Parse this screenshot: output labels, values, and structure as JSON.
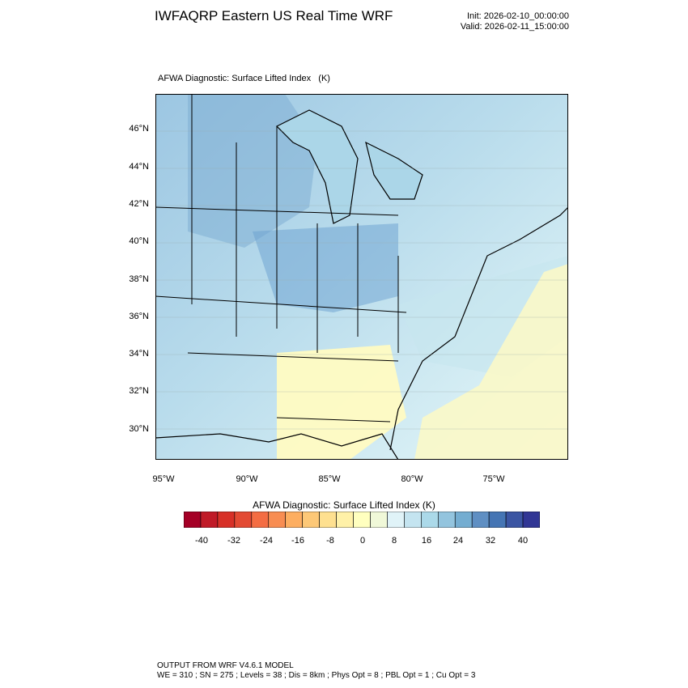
{
  "header": {
    "title": "IWFAQRP Eastern US Real Time WRF",
    "init": "Init: 2026-02-10_00:00:00",
    "valid": "Valid: 2026-02-11_15:00:00"
  },
  "plot": {
    "title": "AFWA Diagnostic: Surface Lifted Index   (K)",
    "lat_labels": [
      "46°N",
      "44°N",
      "42°N",
      "40°N",
      "38°N",
      "36°N",
      "34°N",
      "32°N",
      "30°N"
    ],
    "lon_labels": [
      "95°W",
      "90°W",
      "85°W",
      "80°W",
      "75°W"
    ]
  },
  "colorbar": {
    "title": "AFWA Diagnostic: Surface Lifted Index  (K)",
    "labels": [
      "-40",
      "-32",
      "-24",
      "-16",
      "-8",
      "0",
      "8",
      "16",
      "24",
      "32",
      "40"
    ],
    "colors": [
      "#a50026",
      "#c01a27",
      "#d73027",
      "#e34a33",
      "#f46d43",
      "#f88d52",
      "#fdae61",
      "#fdc877",
      "#fee090",
      "#fff1a8",
      "#ffffbf",
      "#f0f8d8",
      "#e0f3f8",
      "#c4e4f0",
      "#abd9e9",
      "#93c4de",
      "#74add1",
      "#5f8fc3",
      "#4575b4",
      "#3b55a3",
      "#313695"
    ]
  },
  "footer": {
    "line1": "OUTPUT FROM WRF V4.6.1 MODEL",
    "line2": "WE = 310 ; SN = 275 ; Levels = 38 ; Dis = 8km ; Phys Opt = 8 ; PBL Opt = 1 ; Cu Opt = 3"
  }
}
